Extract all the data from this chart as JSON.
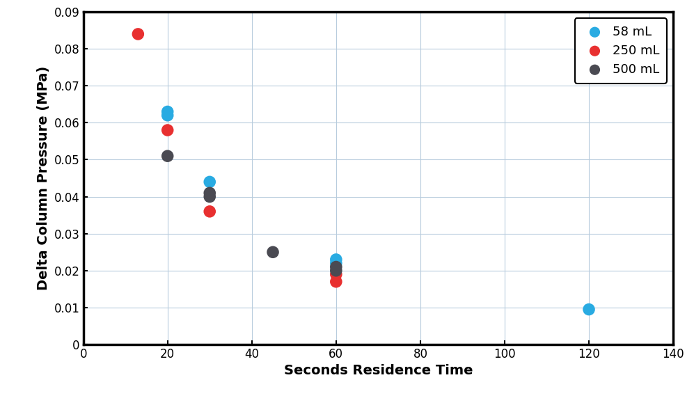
{
  "series": [
    {
      "label": "58 mL",
      "color": "#29ABE2",
      "x": [
        20,
        20,
        30,
        60,
        60,
        120
      ],
      "y": [
        0.062,
        0.063,
        0.044,
        0.023,
        0.022,
        0.0095
      ]
    },
    {
      "label": "250 mL",
      "color": "#E83030",
      "x": [
        13,
        20,
        30,
        60,
        60
      ],
      "y": [
        0.084,
        0.058,
        0.036,
        0.017,
        0.019
      ]
    },
    {
      "label": "500 mL",
      "color": "#4A4A52",
      "x": [
        20,
        30,
        30,
        45,
        60,
        60
      ],
      "y": [
        0.051,
        0.04,
        0.041,
        0.025,
        0.02,
        0.021
      ]
    }
  ],
  "xlabel": "Seconds Residence Time",
  "ylabel": "Delta Column Pressure (MPa)",
  "xlim": [
    0,
    140
  ],
  "ylim": [
    0,
    0.09
  ],
  "xticks": [
    0,
    20,
    40,
    60,
    80,
    100,
    120,
    140
  ],
  "yticks": [
    0,
    0.01,
    0.02,
    0.03,
    0.04,
    0.05,
    0.06,
    0.07,
    0.08,
    0.09
  ],
  "ytick_labels": [
    "0",
    "0.01",
    "0.02",
    "0.03",
    "0.04",
    "0.05",
    "0.06",
    "0.07",
    "0.08",
    "0.09"
  ],
  "grid_color": "#B8CCDD",
  "background_color": "#FFFFFF",
  "marker_size": 160,
  "legend_loc": "upper right",
  "font_size_labels": 14,
  "font_size_ticks": 12,
  "spine_linewidth": 2.5
}
